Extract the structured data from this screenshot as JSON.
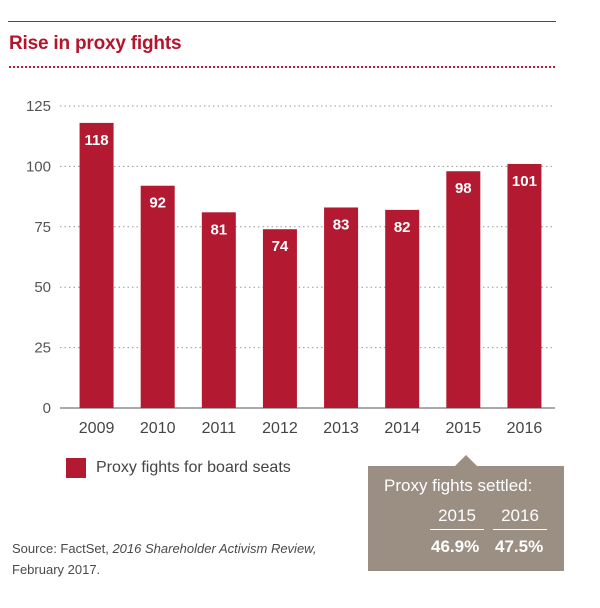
{
  "title": "Rise in proxy fights",
  "chart_data": {
    "type": "bar",
    "categories": [
      "2009",
      "2010",
      "2011",
      "2012",
      "2013",
      "2014",
      "2015",
      "2016"
    ],
    "series": [
      {
        "name": "Proxy fights for board seats",
        "values": [
          118,
          92,
          81,
          74,
          83,
          82,
          98,
          101
        ]
      }
    ],
    "data_labels": [
      "118",
      "92",
      "81",
      "74",
      "83",
      "82",
      "98",
      "101"
    ],
    "yticks": [
      "0",
      "25",
      "50",
      "75",
      "100",
      "125"
    ],
    "ylim": [
      0,
      125
    ],
    "grid": true,
    "bar_color": "#b31a31"
  },
  "legend": {
    "label": "Proxy fights for board seats"
  },
  "settled": {
    "title": "Proxy fights settled:",
    "years": [
      "2015",
      "2016"
    ],
    "values": [
      "46.9%",
      "47.5%"
    ]
  },
  "source": {
    "prefix": "Source: FactSet,",
    "publication": "2016 Shareholder Activism Review,",
    "date": "February 2017."
  },
  "colors": {
    "accent": "#c0192f",
    "bar": "#b31a31",
    "box": "#9b8e83",
    "grid": "#9a9a9a"
  }
}
